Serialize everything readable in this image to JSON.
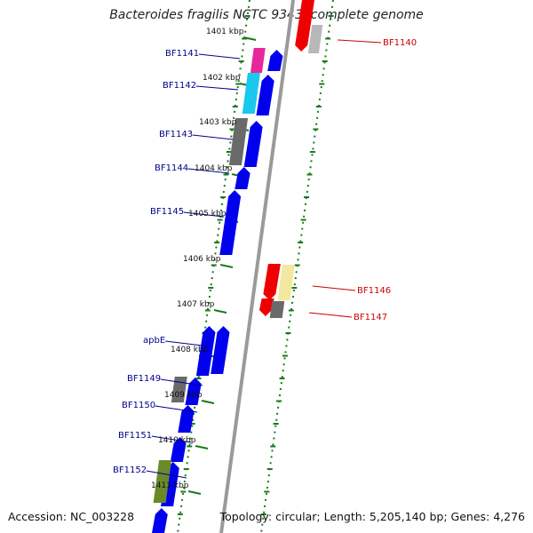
{
  "title": "Bacteroides fragilis NCTC 9343, complete genome",
  "footer": {
    "accession": "Accession: NC_003228",
    "summary": "Topology: circular; Length: 5,205,140 bp; Genes: 4,276"
  },
  "colors": {
    "forward_gene": "#0000ee",
    "reverse_gene": "#ee0000",
    "forward_label": "#00008b",
    "reverse_label": "#cc0000",
    "scale_dash": "#1a7a1a",
    "axis": "#9a9a9a"
  },
  "scale_labels": [
    "1401 kbp",
    "1402 kbp",
    "1403 kbp",
    "1404 kbp",
    "1405 kbp",
    "1406 kbp",
    "1407 kbp",
    "1408 kbp",
    "1409 kbp",
    "1410 kbp",
    "1411 kbp"
  ],
  "forward_labels": [
    "BF1141",
    "BF1142",
    "BF1143",
    "BF1144",
    "BF1145",
    "apbE",
    "BF1149",
    "BF1150",
    "BF1151",
    "BF1152"
  ],
  "reverse_labels": [
    "BF1140",
    "BF1146",
    "BF1147"
  ]
}
